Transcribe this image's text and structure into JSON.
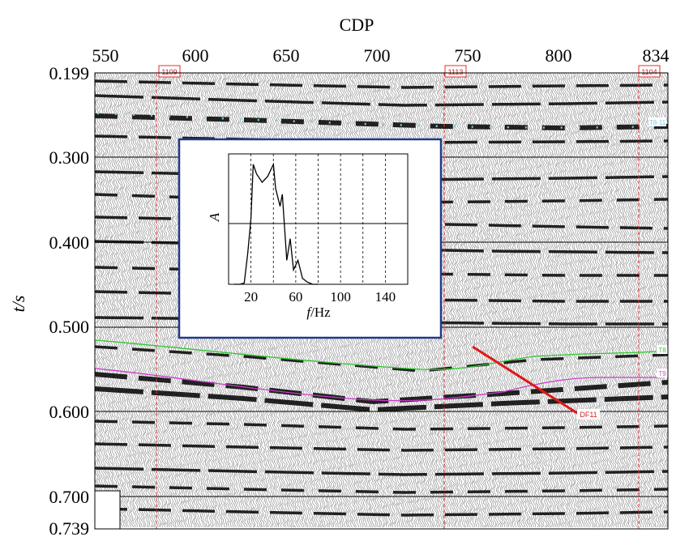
{
  "figure": {
    "top_axis_title": "CDP",
    "y_axis_title": "t/s",
    "x_ticks": [
      "550",
      "600",
      "650",
      "700",
      "750",
      "800",
      "834"
    ],
    "y_ticks": [
      "0.199",
      "0.300",
      "0.400",
      "0.500",
      "0.600",
      "0.700",
      "0.739"
    ],
    "well_markers": [
      "1109",
      "1113",
      "1104"
    ],
    "horizon_labels": [
      {
        "text": "T8-11",
        "color": "#7ec8e8"
      },
      {
        "text": "T8",
        "color": "#3cc83c"
      },
      {
        "text": "T9",
        "color": "#d050d0"
      }
    ],
    "fault_label": "DF11",
    "colors": {
      "fault": "#e01818",
      "inset_frame": "#1f3a8a",
      "well_line": "#e03030",
      "horizon_green": "#2ec82e",
      "horizon_magenta": "#c83cc8"
    }
  },
  "inset": {
    "ylabel": "A",
    "xlabel": "f/Hz"
  },
  "chart_data": {
    "type": "line",
    "title": "",
    "xlabel": "f/Hz",
    "ylabel": "A",
    "xlim": [
      0,
      160
    ],
    "ylim": [
      0,
      1
    ],
    "xticks": [
      20,
      60,
      100,
      140
    ],
    "series": [
      {
        "x": [
          5,
          10,
          14,
          17,
          20,
          22,
          25,
          30,
          35,
          40,
          42,
          46,
          48,
          52,
          55,
          58,
          62,
          66,
          70,
          75,
          80
        ],
        "values": [
          0.0,
          0.0,
          0.01,
          0.25,
          0.55,
          1.0,
          0.92,
          0.85,
          0.9,
          1.0,
          0.8,
          0.65,
          0.75,
          0.2,
          0.38,
          0.12,
          0.2,
          0.05,
          0.02,
          0.0,
          0.0
        ]
      }
    ]
  }
}
